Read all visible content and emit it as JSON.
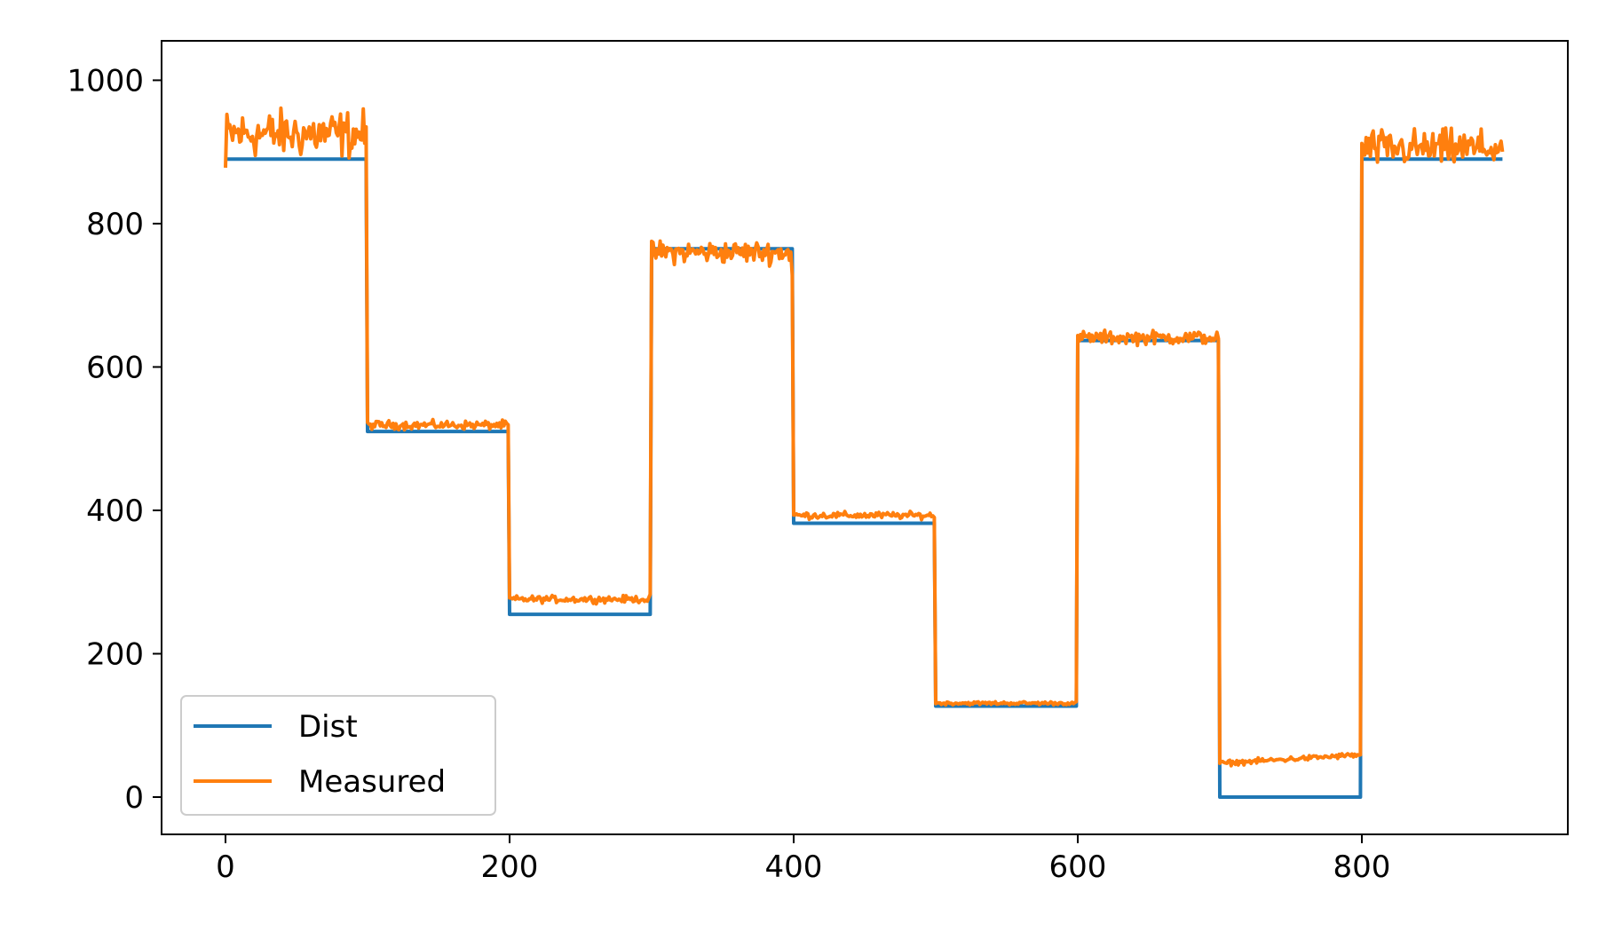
{
  "chart_data": {
    "type": "line",
    "title": "",
    "xlabel": "",
    "ylabel": "",
    "xlim": [
      -45,
      945
    ],
    "ylim": [
      -52,
      1055
    ],
    "grid": false,
    "legend_placement": "lower-left",
    "xticks": [
      0,
      200,
      400,
      600,
      800
    ],
    "yticks": [
      0,
      200,
      400,
      600,
      800,
      1000
    ],
    "x_tick_labels": [
      "0",
      "200",
      "400",
      "600",
      "800"
    ],
    "y_tick_labels": [
      "0",
      "200",
      "400",
      "600",
      "800",
      "1000"
    ],
    "series": [
      {
        "name": "Dist",
        "color": "#1f77b4",
        "segments": [
          {
            "x_start": 0,
            "x_end": 99,
            "value": 890
          },
          {
            "x_start": 100,
            "x_end": 199,
            "value": 510
          },
          {
            "x_start": 200,
            "x_end": 299,
            "value": 255
          },
          {
            "x_start": 300,
            "x_end": 399,
            "value": 765
          },
          {
            "x_start": 400,
            "x_end": 499,
            "value": 382
          },
          {
            "x_start": 500,
            "x_end": 599,
            "value": 127
          },
          {
            "x_start": 600,
            "x_end": 699,
            "value": 637
          },
          {
            "x_start": 700,
            "x_end": 799,
            "value": 0
          },
          {
            "x_start": 800,
            "x_end": 899,
            "value": 890
          }
        ]
      },
      {
        "name": "Measured",
        "color": "#ff7f0e",
        "segments": [
          {
            "x_start": 0,
            "x_end": 99,
            "mean": 925,
            "noise": 28,
            "start_value": 878
          },
          {
            "x_start": 100,
            "x_end": 199,
            "mean": 519,
            "noise": 5
          },
          {
            "x_start": 200,
            "x_end": 299,
            "mean": 276,
            "noise": 4,
            "end_value": 283
          },
          {
            "x_start": 300,
            "x_end": 399,
            "mean": 760,
            "noise": 13,
            "end_value": 728
          },
          {
            "x_start": 400,
            "x_end": 499,
            "mean": 393,
            "noise": 4
          },
          {
            "x_start": 500,
            "x_end": 599,
            "mean": 131,
            "noise": 2
          },
          {
            "x_start": 600,
            "x_end": 699,
            "mean": 641,
            "noise": 8
          },
          {
            "x_start": 700,
            "x_end": 799,
            "mean": 53,
            "noise": 3,
            "start_value": 47,
            "end_value": 59
          },
          {
            "x_start": 800,
            "x_end": 899,
            "mean": 905,
            "noise": 22
          }
        ]
      }
    ]
  }
}
